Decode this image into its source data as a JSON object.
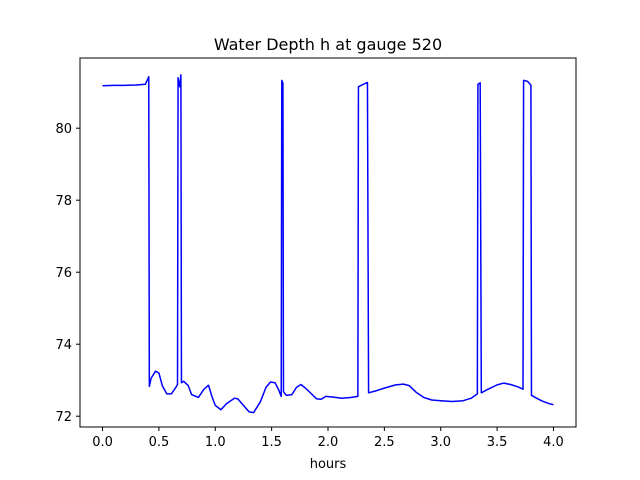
{
  "chart_data": {
    "type": "line",
    "title": "Water Depth h at gauge 520",
    "xlabel": "hours",
    "ylabel": "",
    "xlim": [
      -0.2,
      4.2
    ],
    "ylim": [
      71.7,
      81.95
    ],
    "xticks": [
      0.0,
      0.5,
      1.0,
      1.5,
      2.0,
      2.5,
      3.0,
      3.5,
      4.0
    ],
    "xtick_labels": [
      "0.0",
      "0.5",
      "1.0",
      "1.5",
      "2.0",
      "2.5",
      "3.0",
      "3.5",
      "4.0"
    ],
    "yticks": [
      72,
      74,
      76,
      78,
      80
    ],
    "ytick_labels": [
      "72",
      "74",
      "76",
      "78",
      "80"
    ],
    "grid": false,
    "series": [
      {
        "color": "#0000ff",
        "points": [
          [
            0.0,
            81.18
          ],
          [
            0.1,
            81.19
          ],
          [
            0.2,
            81.19
          ],
          [
            0.3,
            81.2
          ],
          [
            0.38,
            81.22
          ],
          [
            0.41,
            81.43
          ],
          [
            0.415,
            72.83
          ],
          [
            0.43,
            73.05
          ],
          [
            0.47,
            73.25
          ],
          [
            0.5,
            73.2
          ],
          [
            0.53,
            72.85
          ],
          [
            0.57,
            72.62
          ],
          [
            0.61,
            72.62
          ],
          [
            0.65,
            72.8
          ],
          [
            0.665,
            72.88
          ],
          [
            0.67,
            81.4
          ],
          [
            0.685,
            81.15
          ],
          [
            0.695,
            81.48
          ],
          [
            0.7,
            72.93
          ],
          [
            0.72,
            72.97
          ],
          [
            0.76,
            72.85
          ],
          [
            0.79,
            72.6
          ],
          [
            0.85,
            72.52
          ],
          [
            0.9,
            72.75
          ],
          [
            0.94,
            72.86
          ],
          [
            0.97,
            72.55
          ],
          [
            1.0,
            72.3
          ],
          [
            1.05,
            72.18
          ],
          [
            1.1,
            72.35
          ],
          [
            1.17,
            72.5
          ],
          [
            1.2,
            72.48
          ],
          [
            1.25,
            72.3
          ],
          [
            1.3,
            72.12
          ],
          [
            1.34,
            72.1
          ],
          [
            1.4,
            72.4
          ],
          [
            1.45,
            72.8
          ],
          [
            1.49,
            72.95
          ],
          [
            1.53,
            72.93
          ],
          [
            1.56,
            72.75
          ],
          [
            1.585,
            72.55
          ],
          [
            1.59,
            81.33
          ],
          [
            1.6,
            81.25
          ],
          [
            1.605,
            72.68
          ],
          [
            1.63,
            72.58
          ],
          [
            1.68,
            72.6
          ],
          [
            1.72,
            72.8
          ],
          [
            1.76,
            72.88
          ],
          [
            1.8,
            72.78
          ],
          [
            1.85,
            72.63
          ],
          [
            1.9,
            72.48
          ],
          [
            1.94,
            72.47
          ],
          [
            1.98,
            72.55
          ],
          [
            2.05,
            72.53
          ],
          [
            2.12,
            72.5
          ],
          [
            2.2,
            72.52
          ],
          [
            2.265,
            72.55
          ],
          [
            2.27,
            81.15
          ],
          [
            2.3,
            81.2
          ],
          [
            2.35,
            81.27
          ],
          [
            2.36,
            72.65
          ],
          [
            2.42,
            72.7
          ],
          [
            2.5,
            72.78
          ],
          [
            2.6,
            72.87
          ],
          [
            2.67,
            72.89
          ],
          [
            2.72,
            72.85
          ],
          [
            2.78,
            72.67
          ],
          [
            2.85,
            72.52
          ],
          [
            2.92,
            72.45
          ],
          [
            3.0,
            72.43
          ],
          [
            3.1,
            72.41
          ],
          [
            3.2,
            72.43
          ],
          [
            3.27,
            72.5
          ],
          [
            3.325,
            72.62
          ],
          [
            3.33,
            81.22
          ],
          [
            3.35,
            81.26
          ],
          [
            3.36,
            72.65
          ],
          [
            3.42,
            72.75
          ],
          [
            3.5,
            72.87
          ],
          [
            3.56,
            72.92
          ],
          [
            3.62,
            72.88
          ],
          [
            3.68,
            72.82
          ],
          [
            3.73,
            72.75
          ],
          [
            3.735,
            81.33
          ],
          [
            3.77,
            81.3
          ],
          [
            3.8,
            81.2
          ],
          [
            3.805,
            72.58
          ],
          [
            3.85,
            72.5
          ],
          [
            3.9,
            72.42
          ],
          [
            3.96,
            72.35
          ],
          [
            4.0,
            72.32
          ]
        ]
      }
    ]
  }
}
